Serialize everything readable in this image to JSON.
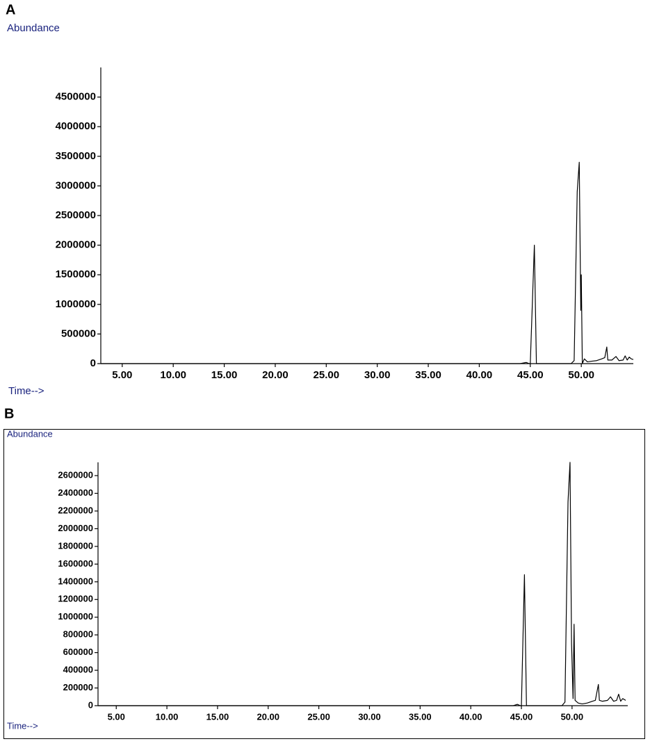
{
  "chart_data": [
    {
      "type": "line",
      "panel_label": "A",
      "y_label": "Abundance",
      "x_label": "Time-->",
      "color": "#000000",
      "x": [
        2.9,
        44.0,
        44.6,
        44.9,
        45.0,
        45.4,
        45.6,
        49.0,
        49.3,
        49.6,
        49.8,
        49.95,
        50.0,
        50.1,
        50.3,
        50.6,
        51.0,
        51.5,
        52.0,
        52.3,
        52.5,
        52.6,
        53.0,
        53.4,
        53.7,
        54.1,
        54.3,
        54.5,
        54.7,
        54.9,
        55.1
      ],
      "values": [
        0,
        0,
        20000,
        0,
        0,
        2000000,
        0,
        0,
        50000,
        2900000,
        3400000,
        900000,
        1500000,
        0,
        80000,
        30000,
        40000,
        50000,
        80000,
        100000,
        280000,
        60000,
        60000,
        120000,
        50000,
        60000,
        130000,
        60000,
        110000,
        80000,
        70000
      ],
      "xlim": [
        2.9,
        55.1
      ],
      "ylim": [
        0,
        5000000
      ],
      "xticks": [
        {
          "value": 5,
          "label": "5.00"
        },
        {
          "value": 10,
          "label": "10.00"
        },
        {
          "value": 15,
          "label": "15.00"
        },
        {
          "value": 20,
          "label": "20.00"
        },
        {
          "value": 25,
          "label": "25.00"
        },
        {
          "value": 30,
          "label": "30.00"
        },
        {
          "value": 35,
          "label": "35.00"
        },
        {
          "value": 40,
          "label": "40.00"
        },
        {
          "value": 45,
          "label": "45.00"
        },
        {
          "value": 50,
          "label": "50.00"
        }
      ],
      "yticks": [
        0,
        500000,
        1000000,
        1500000,
        2000000,
        2500000,
        3000000,
        3500000,
        4000000,
        4500000
      ]
    },
    {
      "type": "line",
      "panel_label": "B",
      "y_label": "Abundance",
      "x_label": "Time-->",
      "color": "#000000",
      "x": [
        3.2,
        44.2,
        44.6,
        44.9,
        45.0,
        45.3,
        45.5,
        49.0,
        49.3,
        49.6,
        49.8,
        49.95,
        50.1,
        50.2,
        50.3,
        50.6,
        51.0,
        51.5,
        52.0,
        52.3,
        52.6,
        52.7,
        53.0,
        53.5,
        53.8,
        54.1,
        54.4,
        54.6,
        54.8,
        55.0,
        55.3
      ],
      "values": [
        0,
        0,
        15000,
        0,
        0,
        1480000,
        0,
        0,
        40000,
        2300000,
        2750000,
        700000,
        80000,
        920000,
        60000,
        30000,
        20000,
        30000,
        50000,
        60000,
        240000,
        60000,
        50000,
        60000,
        100000,
        50000,
        60000,
        130000,
        50000,
        80000,
        60000
      ],
      "xlim": [
        3.2,
        55.5
      ],
      "ylim": [
        0,
        2750000
      ],
      "xticks": [
        {
          "value": 5,
          "label": "5.00"
        },
        {
          "value": 10,
          "label": "10.00"
        },
        {
          "value": 15,
          "label": "15.00"
        },
        {
          "value": 20,
          "label": "20.00"
        },
        {
          "value": 25,
          "label": "25.00"
        },
        {
          "value": 30,
          "label": "30.00"
        },
        {
          "value": 35,
          "label": "35.00"
        },
        {
          "value": 40,
          "label": "40.00"
        },
        {
          "value": 45,
          "label": "45.00"
        },
        {
          "value": 50,
          "label": "50.00"
        }
      ],
      "yticks": [
        0,
        200000,
        400000,
        600000,
        800000,
        1000000,
        1200000,
        1400000,
        1600000,
        1800000,
        2000000,
        2200000,
        2400000,
        2600000
      ]
    }
  ]
}
